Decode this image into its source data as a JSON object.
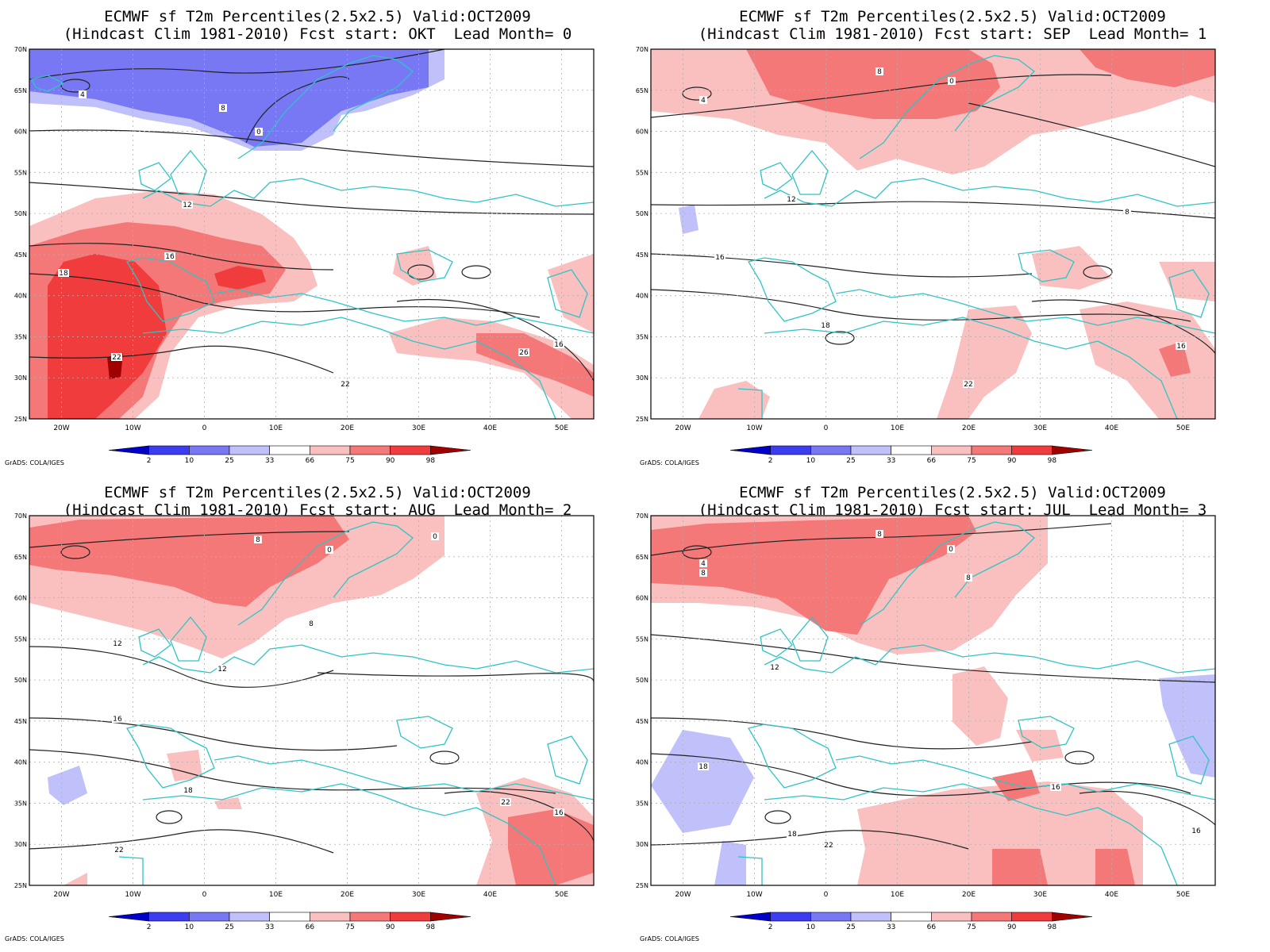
{
  "colors": {
    "coastline": "#2ec4c4",
    "contour": "#222222",
    "grid": "#b0b0b0",
    "p2": "#0000c8",
    "p10": "#3c3cf0",
    "p25": "#7878f5",
    "p33": "#c0c0fa",
    "p66": "#ffffff",
    "p75": "#fac0c0",
    "p90": "#f57878",
    "p98": "#f03c3c",
    "p100": "#a00000"
  },
  "colorbar": {
    "labels": [
      "2",
      "10",
      "25",
      "33",
      "66",
      "75",
      "90",
      "98"
    ],
    "colors": [
      "#0000c8",
      "#3c3cf0",
      "#7878f5",
      "#c0c0fa",
      "#ffffff",
      "#fac0c0",
      "#f57878",
      "#f03c3c",
      "#a00000"
    ]
  },
  "axes": {
    "lat_labels": [
      "70N",
      "65N",
      "60N",
      "55N",
      "50N",
      "45N",
      "40N",
      "35N",
      "30N",
      "25N"
    ],
    "lon_labels": [
      "20W",
      "10W",
      "0",
      "10E",
      "20E",
      "30E",
      "40E",
      "50E"
    ]
  },
  "credit": "GrADS: COLA/IGES",
  "panels": [
    {
      "title1": "ECMWF sf T2m Percentiles(2.5x2.5) Valid:OCT2009",
      "title2": "(Hindcast Clim 1981-2010) Fcst start: OKT  Lead Month= 0",
      "contour_labels": [
        "0",
        "4",
        "8",
        "12",
        "16",
        "18",
        "22",
        "26"
      ]
    },
    {
      "title1": "ECMWF sf T2m Percentiles(2.5x2.5) Valid:OCT2009",
      "title2": "(Hindcast Clim 1981-2010) Fcst start: SEP  Lead Month= 1",
      "contour_labels": [
        "0",
        "4",
        "8",
        "12",
        "16",
        "18",
        "22"
      ]
    },
    {
      "title1": "ECMWF sf T2m Percentiles(2.5x2.5) Valid:OCT2009",
      "title2": "(Hindcast Clim 1981-2010) Fcst start: AUG  Lead Month= 2",
      "contour_labels": [
        "0",
        "8",
        "12",
        "16",
        "18",
        "22"
      ]
    },
    {
      "title1": "ECMWF sf T2m Percentiles(2.5x2.5) Valid:OCT2009",
      "title2": "(Hindcast Clim 1981-2010) Fcst start: JUL  Lead Month= 3",
      "contour_labels": [
        "0",
        "4",
        "8",
        "12",
        "16",
        "18",
        "22"
      ]
    }
  ]
}
